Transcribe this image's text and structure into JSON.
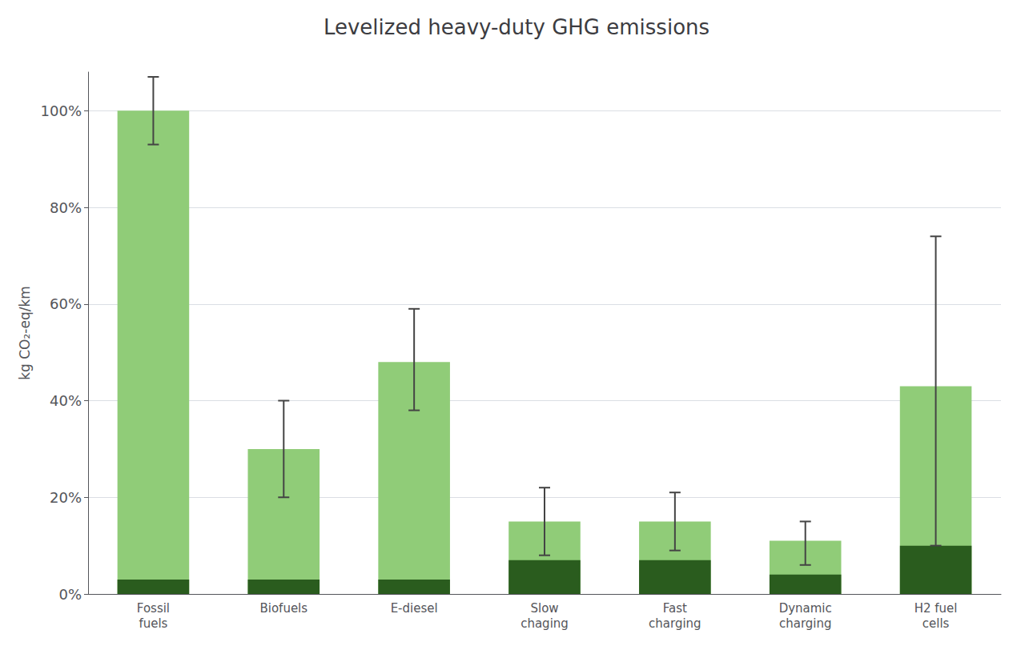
{
  "chart_data": {
    "type": "bar",
    "title": "Levelized heavy-duty GHG emissions",
    "ylabel": "kg CO₂-eq/km",
    "categories": [
      "Fossil\nfuels",
      "Biofuels",
      "E-diesel",
      "Slow\nchaging",
      "Fast\ncharging",
      "Dynamic\ncharging",
      "H2 fuel\ncells"
    ],
    "series": [
      {
        "color": "#90cc78",
        "values": [
          100,
          30,
          48,
          15,
          15,
          11,
          43
        ],
        "error_low": [
          93,
          20,
          38,
          8,
          9,
          6,
          10
        ],
        "error_high": [
          107,
          40,
          59,
          22,
          21,
          15,
          74
        ]
      },
      {
        "color": "#2a5c1e",
        "values": [
          3,
          3,
          3,
          7,
          7,
          4,
          10
        ]
      }
    ],
    "stacked": false,
    "ylim": [
      0,
      108
    ],
    "yticks": [
      {
        "value": 0,
        "label": "0%"
      },
      {
        "value": 20,
        "label": "20%"
      },
      {
        "value": 40,
        "label": "40%"
      },
      {
        "value": 60,
        "label": "60%"
      },
      {
        "value": 80,
        "label": "80%"
      },
      {
        "value": 100,
        "label": "100%"
      }
    ],
    "grid": true
  }
}
